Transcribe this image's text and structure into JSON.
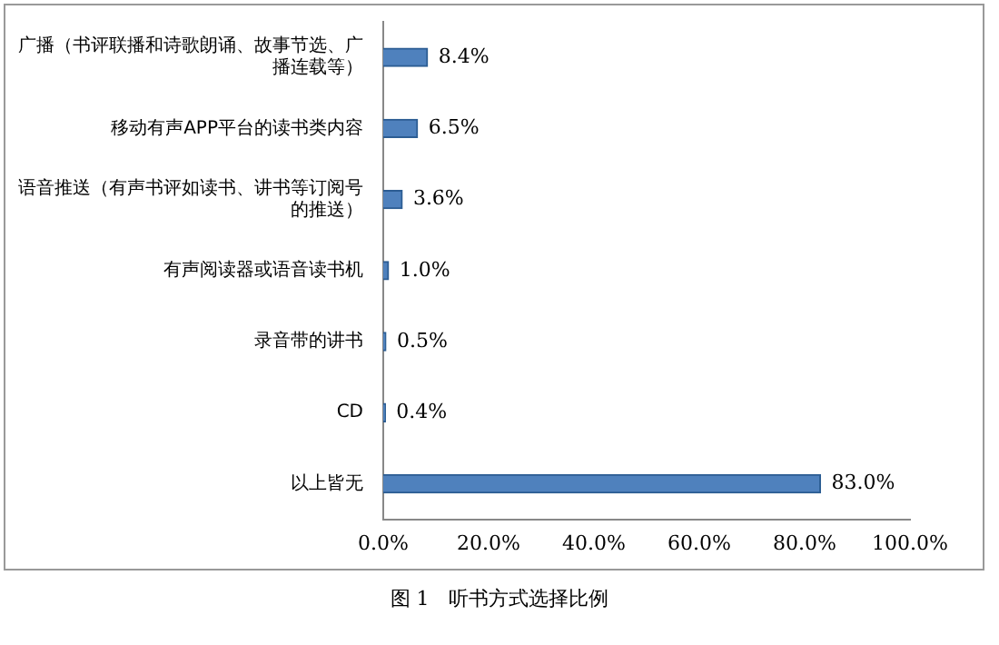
{
  "chart_data": {
    "type": "bar",
    "orientation": "horizontal",
    "categories": [
      "广播（书评联播和诗歌朗诵、故事节选、广播连载等）",
      "移动有声APP平台的读书类内容",
      "语音推送（有声书评如读书、讲书等订阅号的推送）",
      "有声阅读器或语音读书机",
      "录音带的讲书",
      "CD",
      "以上皆无"
    ],
    "values": [
      8.4,
      6.5,
      3.6,
      1.0,
      0.5,
      0.4,
      83.0
    ],
    "value_labels": [
      "8.4%",
      "6.5%",
      "3.6%",
      "1.0%",
      "0.5%",
      "0.4%",
      "83.0%"
    ],
    "color": "#4f81bd",
    "xlim": [
      0,
      100
    ],
    "xticks": [
      {
        "value": 0,
        "label": "0.0%"
      },
      {
        "value": 20,
        "label": "20.0%"
      },
      {
        "value": 40,
        "label": "40.0%"
      },
      {
        "value": 60,
        "label": "60.0%"
      },
      {
        "value": 80,
        "label": "80.0%"
      },
      {
        "value": 100,
        "label": "100.0%"
      }
    ],
    "grid": false,
    "legend": false,
    "annotations": [
      "图 1　听书方式选择比例"
    ]
  }
}
